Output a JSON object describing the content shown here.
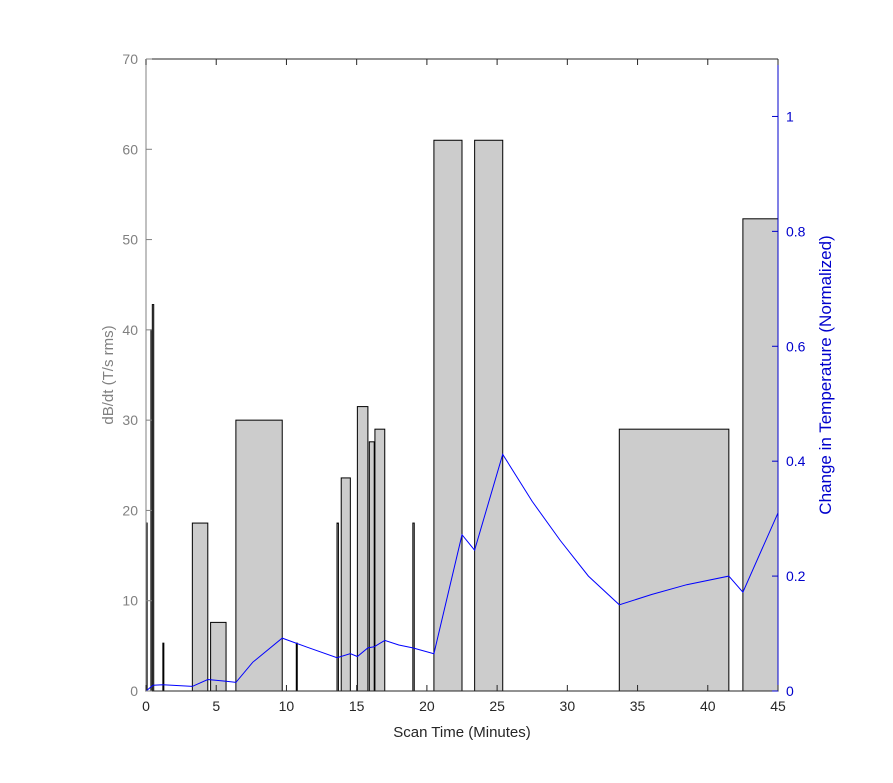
{
  "chart_data": {
    "type": "bar",
    "title": "",
    "xlabel": "Scan Time (Minutes)",
    "ylabel_left": "dB/dt (T/s rms)",
    "ylabel_right": "Change in Temperature (Normalized)",
    "xlim": [
      0,
      45
    ],
    "ylim_left": [
      0,
      70
    ],
    "ylim_right": [
      0,
      1.1
    ],
    "x_ticks": [
      0,
      5,
      10,
      15,
      20,
      25,
      30,
      35,
      40,
      45
    ],
    "y_left_ticks": [
      0,
      10,
      20,
      30,
      40,
      50,
      60,
      70
    ],
    "y_right_ticks": [
      0,
      0.2,
      0.4,
      0.6,
      0.8,
      1
    ],
    "grid": false,
    "colors": {
      "bars_fill": "#cccccc",
      "bars_stroke": "#000000",
      "temperature_line": "#0000ff",
      "left_axis": "#808080",
      "right_axis": "#0000cc",
      "bottom_axis": "#262626"
    },
    "dbdt_blocks": [
      {
        "start": 0.0,
        "end": 0.08,
        "value": 18.6
      },
      {
        "start": 0.35,
        "end": 0.45,
        "value": 40
      },
      {
        "start": 0.45,
        "end": 0.55,
        "value": 42.8
      },
      {
        "start": 1.2,
        "end": 1.27,
        "value": 5.3
      },
      {
        "start": 3.3,
        "end": 4.4,
        "value": 18.6
      },
      {
        "start": 4.6,
        "end": 5.7,
        "value": 7.6
      },
      {
        "start": 6.4,
        "end": 9.7,
        "value": 30
      },
      {
        "start": 10.7,
        "end": 10.77,
        "value": 5.3
      },
      {
        "start": 13.6,
        "end": 13.7,
        "value": 18.6
      },
      {
        "start": 13.9,
        "end": 14.55,
        "value": 23.6
      },
      {
        "start": 15.05,
        "end": 15.8,
        "value": 31.5
      },
      {
        "start": 15.9,
        "end": 16.25,
        "value": 27.6
      },
      {
        "start": 16.3,
        "end": 17.0,
        "value": 29
      },
      {
        "start": 19.0,
        "end": 19.1,
        "value": 18.6
      },
      {
        "start": 20.5,
        "end": 22.5,
        "value": 61
      },
      {
        "start": 23.4,
        "end": 25.4,
        "value": 61
      },
      {
        "start": 33.7,
        "end": 41.5,
        "value": 29
      },
      {
        "start": 42.5,
        "end": 45.0,
        "value": 52.3
      }
    ],
    "temperature_series": {
      "x": [
        0,
        0.5,
        1.2,
        3.3,
        4.4,
        5.7,
        6.4,
        7.6,
        9.7,
        11.5,
        13.6,
        14.55,
        15.05,
        15.8,
        16.25,
        17.0,
        18.0,
        19.0,
        20.5,
        22.5,
        23.4,
        25.4,
        27.5,
        29.5,
        31.5,
        33.7,
        36,
        38.5,
        41.5,
        42.5,
        45.0
      ],
      "y": [
        0.0,
        0.01,
        0.011,
        0.008,
        0.02,
        0.017,
        0.015,
        0.05,
        0.092,
        0.076,
        0.058,
        0.065,
        0.06,
        0.075,
        0.077,
        0.088,
        0.08,
        0.075,
        0.065,
        0.272,
        0.245,
        0.412,
        0.33,
        0.262,
        0.2,
        0.15,
        0.168,
        0.185,
        0.2,
        0.172,
        0.31
      ]
    }
  }
}
